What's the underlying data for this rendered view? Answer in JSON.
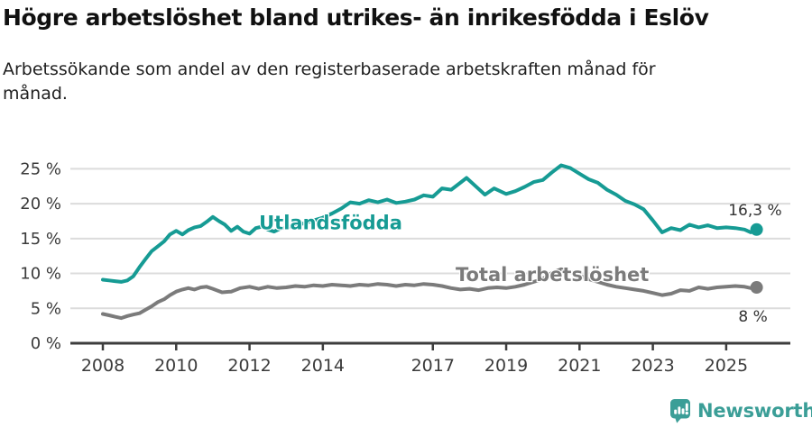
{
  "header": {
    "title": "Högre arbetslöshet bland utrikes- än inrikesfödda i Eslöv",
    "subtitle": "Arbetssökande som andel av den registerbaserade arbetskraften månad för månad."
  },
  "branding": {
    "logo_text": "Newsworthy",
    "logo_icon": "newsworthy-speech-bubble-bar-chart-icon",
    "logo_color": "#3b9e97"
  },
  "colors": {
    "series_foreign_born": "#169b94",
    "series_total": "#7b7b7b",
    "axis": "#3d3d3d",
    "gridline": "#dcdcdc",
    "tick_text": "#3b3b3b",
    "end_label_text": "#333333"
  },
  "chart_data": {
    "type": "line",
    "title": "Högre arbetslöshet bland utrikes- än inrikesfödda i Eslöv",
    "subtitle": "Arbetssökande som andel av den registerbaserade arbetskraften månad för månad.",
    "xlabel": "",
    "ylabel": "",
    "grid": true,
    "legend_position": "inline-series-labels",
    "x_axis": {
      "values": [
        2008,
        2010,
        2012,
        2014,
        2017,
        2019,
        2021,
        2023,
        2025
      ],
      "tick_labels": [
        "2008",
        "2010",
        "2012",
        "2014",
        "2017",
        "2019",
        "2021",
        "2023",
        "2025"
      ],
      "range": [
        2007.1,
        2026.8
      ]
    },
    "y_axis": {
      "values": [
        0,
        5,
        10,
        15,
        20,
        25
      ],
      "tick_labels": [
        "0 %",
        "5 %",
        "10 %",
        "15 %",
        "20 %",
        "25 %"
      ],
      "range": [
        0,
        26.5
      ]
    },
    "series": [
      {
        "name": "Utlandsfödda",
        "color": "#169b94",
        "end_value": 16.3,
        "end_label": "16,3 %",
        "end_label_anchor": "end",
        "end_label_offset": [
          28,
          -16
        ],
        "name_label_pos": [
          2012.26,
          16.35
        ],
        "points": [
          [
            2008.0,
            9.1
          ],
          [
            2008.17,
            9.0
          ],
          [
            2008.33,
            8.9
          ],
          [
            2008.5,
            8.8
          ],
          [
            2008.67,
            9.0
          ],
          [
            2008.83,
            9.6
          ],
          [
            2009.0,
            10.9
          ],
          [
            2009.17,
            12.1
          ],
          [
            2009.33,
            13.2
          ],
          [
            2009.5,
            13.9
          ],
          [
            2009.67,
            14.6
          ],
          [
            2009.83,
            15.6
          ],
          [
            2010.0,
            16.1
          ],
          [
            2010.17,
            15.6
          ],
          [
            2010.33,
            16.2
          ],
          [
            2010.5,
            16.6
          ],
          [
            2010.67,
            16.8
          ],
          [
            2010.83,
            17.4
          ],
          [
            2011.0,
            18.1
          ],
          [
            2011.17,
            17.5
          ],
          [
            2011.33,
            17.0
          ],
          [
            2011.5,
            16.1
          ],
          [
            2011.67,
            16.7
          ],
          [
            2011.83,
            16.0
          ],
          [
            2012.0,
            15.7
          ],
          [
            2012.17,
            16.5
          ],
          [
            2012.33,
            16.7
          ],
          [
            2012.5,
            16.3
          ],
          [
            2012.67,
            16.0
          ],
          [
            2012.83,
            16.4
          ],
          [
            2013.0,
            16.6
          ],
          [
            2013.25,
            16.9
          ],
          [
            2013.5,
            17.2
          ],
          [
            2013.75,
            17.6
          ],
          [
            2014.0,
            18.0
          ],
          [
            2014.25,
            18.6
          ],
          [
            2014.5,
            19.3
          ],
          [
            2014.75,
            20.2
          ],
          [
            2015.0,
            20.0
          ],
          [
            2015.25,
            20.5
          ],
          [
            2015.5,
            20.2
          ],
          [
            2015.75,
            20.6
          ],
          [
            2016.0,
            20.1
          ],
          [
            2016.25,
            20.3
          ],
          [
            2016.5,
            20.6
          ],
          [
            2016.75,
            21.2
          ],
          [
            2017.0,
            21.0
          ],
          [
            2017.25,
            22.2
          ],
          [
            2017.5,
            22.0
          ],
          [
            2017.75,
            23.0
          ],
          [
            2017.92,
            23.7
          ],
          [
            2018.17,
            22.5
          ],
          [
            2018.42,
            21.3
          ],
          [
            2018.67,
            22.2
          ],
          [
            2019.0,
            21.4
          ],
          [
            2019.25,
            21.8
          ],
          [
            2019.5,
            22.4
          ],
          [
            2019.75,
            23.1
          ],
          [
            2020.0,
            23.4
          ],
          [
            2020.25,
            24.5
          ],
          [
            2020.5,
            25.5
          ],
          [
            2020.75,
            25.1
          ],
          [
            2021.0,
            24.3
          ],
          [
            2021.25,
            23.5
          ],
          [
            2021.5,
            23.0
          ],
          [
            2021.75,
            22.0
          ],
          [
            2022.0,
            21.3
          ],
          [
            2022.25,
            20.4
          ],
          [
            2022.5,
            19.9
          ],
          [
            2022.75,
            19.2
          ],
          [
            2023.0,
            17.6
          ],
          [
            2023.25,
            15.9
          ],
          [
            2023.5,
            16.5
          ],
          [
            2023.75,
            16.2
          ],
          [
            2024.0,
            17.0
          ],
          [
            2024.25,
            16.6
          ],
          [
            2024.5,
            16.9
          ],
          [
            2024.75,
            16.5
          ],
          [
            2025.0,
            16.6
          ],
          [
            2025.25,
            16.5
          ],
          [
            2025.5,
            16.3
          ],
          [
            2025.67,
            15.9
          ],
          [
            2025.83,
            16.3
          ]
        ]
      },
      {
        "name": "Total arbetslöshet",
        "color": "#7b7b7b",
        "end_value": 8,
        "end_label": "8 %",
        "end_label_anchor": "middle",
        "end_label_offset": [
          -4,
          38
        ],
        "name_label_pos": [
          2017.62,
          8.9
        ],
        "points": [
          [
            2008.0,
            4.2
          ],
          [
            2008.17,
            4.0
          ],
          [
            2008.33,
            3.8
          ],
          [
            2008.5,
            3.6
          ],
          [
            2008.67,
            3.9
          ],
          [
            2008.83,
            4.1
          ],
          [
            2009.0,
            4.3
          ],
          [
            2009.17,
            4.8
          ],
          [
            2009.33,
            5.3
          ],
          [
            2009.5,
            5.9
          ],
          [
            2009.67,
            6.3
          ],
          [
            2009.83,
            6.9
          ],
          [
            2010.0,
            7.4
          ],
          [
            2010.17,
            7.7
          ],
          [
            2010.33,
            7.9
          ],
          [
            2010.5,
            7.7
          ],
          [
            2010.67,
            8.0
          ],
          [
            2010.83,
            8.1
          ],
          [
            2011.0,
            7.8
          ],
          [
            2011.25,
            7.3
          ],
          [
            2011.5,
            7.4
          ],
          [
            2011.75,
            7.9
          ],
          [
            2012.0,
            8.1
          ],
          [
            2012.25,
            7.8
          ],
          [
            2012.5,
            8.1
          ],
          [
            2012.75,
            7.9
          ],
          [
            2013.0,
            8.0
          ],
          [
            2013.25,
            8.2
          ],
          [
            2013.5,
            8.1
          ],
          [
            2013.75,
            8.3
          ],
          [
            2014.0,
            8.2
          ],
          [
            2014.25,
            8.4
          ],
          [
            2014.5,
            8.3
          ],
          [
            2014.75,
            8.2
          ],
          [
            2015.0,
            8.4
          ],
          [
            2015.25,
            8.3
          ],
          [
            2015.5,
            8.5
          ],
          [
            2015.75,
            8.4
          ],
          [
            2016.0,
            8.2
          ],
          [
            2016.25,
            8.4
          ],
          [
            2016.5,
            8.3
          ],
          [
            2016.75,
            8.5
          ],
          [
            2017.0,
            8.4
          ],
          [
            2017.25,
            8.2
          ],
          [
            2017.5,
            7.9
          ],
          [
            2017.75,
            7.7
          ],
          [
            2018.0,
            7.8
          ],
          [
            2018.25,
            7.6
          ],
          [
            2018.5,
            7.9
          ],
          [
            2018.75,
            8.0
          ],
          [
            2019.0,
            7.9
          ],
          [
            2019.25,
            8.1
          ],
          [
            2019.5,
            8.4
          ],
          [
            2019.75,
            8.8
          ],
          [
            2020.0,
            9.2
          ],
          [
            2020.25,
            10.1
          ],
          [
            2020.5,
            10.6
          ],
          [
            2020.75,
            10.2
          ],
          [
            2021.0,
            9.7
          ],
          [
            2021.25,
            9.2
          ],
          [
            2021.5,
            8.8
          ],
          [
            2021.75,
            8.4
          ],
          [
            2022.0,
            8.1
          ],
          [
            2022.25,
            7.9
          ],
          [
            2022.5,
            7.7
          ],
          [
            2022.75,
            7.5
          ],
          [
            2023.0,
            7.2
          ],
          [
            2023.25,
            6.9
          ],
          [
            2023.5,
            7.1
          ],
          [
            2023.75,
            7.6
          ],
          [
            2024.0,
            7.5
          ],
          [
            2024.25,
            8.0
          ],
          [
            2024.5,
            7.8
          ],
          [
            2024.75,
            8.0
          ],
          [
            2025.0,
            8.1
          ],
          [
            2025.25,
            8.2
          ],
          [
            2025.5,
            8.1
          ],
          [
            2025.67,
            7.9
          ],
          [
            2025.83,
            8.0
          ]
        ]
      }
    ]
  }
}
